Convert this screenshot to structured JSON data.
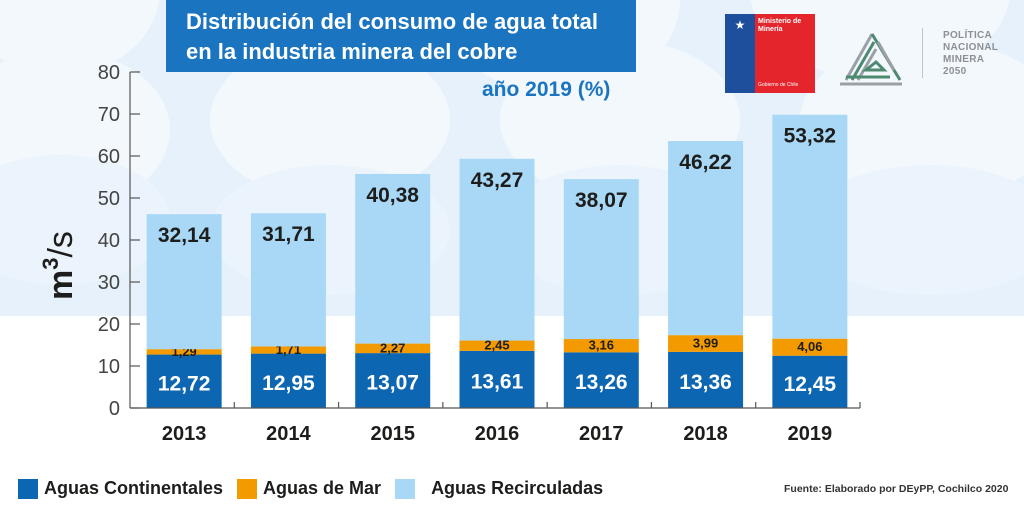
{
  "header": {
    "title_line1": "Distribución del consumo de agua total",
    "title_line2": "en la industria minera del cobre",
    "subtitle": "año 2019 (%)"
  },
  "logos": {
    "ministerio": {
      "line1": "Ministerio de",
      "line2": "Minería",
      "footer": "Gobierno de Chile",
      "blue": "#1d4f9c",
      "red": "#e4252c"
    },
    "politica": {
      "line1": "POLÍTICA",
      "line2": "NACIONAL",
      "line3": "MINERA",
      "line4": "2050"
    }
  },
  "source": "Fuente: Elaborado por DEyPP, Cochilco 2020",
  "colors": {
    "continentales": "#0d66b1",
    "mar": "#f29a00",
    "recirculadas": "#a8d8f6",
    "title_bg": "#1a74bf",
    "axis": "#555555"
  },
  "chart_data": {
    "type": "bar",
    "stacked": true,
    "title": "Distribución del consumo de agua total en la industria minera del cobre",
    "subtitle": "año 2019 (%)",
    "xlabel": "",
    "ylabel": "m³/s",
    "ylabel_base": "m",
    "ylabel_sup": "3",
    "ylabel_tail": "/s",
    "ylim": [
      0,
      80
    ],
    "yticks": [
      0,
      10,
      20,
      30,
      40,
      50,
      60,
      70,
      80
    ],
    "grid": false,
    "legend_position": "bottom-left",
    "categories": [
      "2013",
      "2014",
      "2015",
      "2016",
      "2017",
      "2018",
      "2019"
    ],
    "series": [
      {
        "name": "Aguas Continentales",
        "color": "#0d66b1",
        "values": [
          12.72,
          12.95,
          13.07,
          13.61,
          13.26,
          13.36,
          12.45
        ],
        "labels": [
          "12,72",
          "12,95",
          "13,07",
          "13,61",
          "13,26",
          "13,36",
          "12,45"
        ]
      },
      {
        "name": "Aguas de Mar",
        "color": "#f29a00",
        "values": [
          1.29,
          1.71,
          2.27,
          2.45,
          3.16,
          3.99,
          4.06
        ],
        "labels": [
          "1,29",
          "1,71",
          "2,27",
          "2,45",
          "3,16",
          "3,99",
          "4,06"
        ]
      },
      {
        "name": "Aguas Recirculadas",
        "color": "#a8d8f6",
        "values": [
          32.14,
          31.71,
          40.38,
          43.27,
          38.07,
          46.22,
          53.32
        ],
        "labels": [
          "32,14",
          "31,71",
          "40,38",
          "43,27",
          "38,07",
          "46,22",
          "53,32"
        ]
      }
    ]
  }
}
